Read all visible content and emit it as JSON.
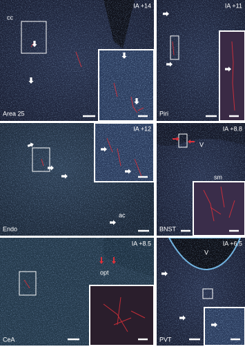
{
  "panels": [
    {
      "ia": "IA +14",
      "region": "Area 25",
      "labels": [
        "cc"
      ]
    },
    {
      "ia": "IA +11",
      "region": "Piri"
    },
    {
      "ia": "IA +12",
      "region": "Endo",
      "labels": [
        "ac"
      ]
    },
    {
      "ia": "IA +8.8",
      "region": "BNST",
      "labels": [
        "V",
        "sm"
      ]
    },
    {
      "ia": "IA +8.5",
      "region": "CeA",
      "labels": [
        "opt"
      ]
    },
    {
      "ia": "IA +6.5",
      "region": "PVT",
      "labels": [
        "V"
      ]
    }
  ]
}
